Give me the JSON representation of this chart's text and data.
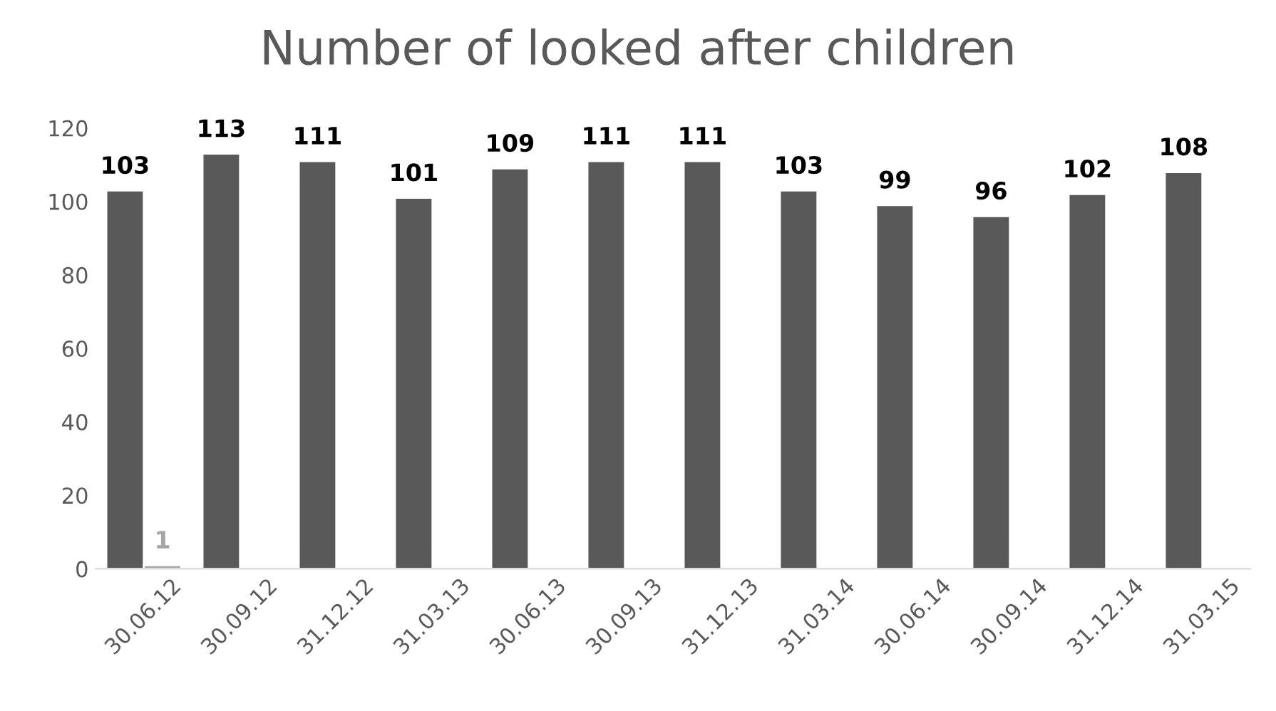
{
  "chart_data": {
    "type": "bar",
    "title": "Number of looked after children",
    "categories": [
      "30.06.12",
      "30.09.12",
      "31.12.12",
      "31.03.13",
      "30.06.13",
      "30.09.13",
      "31.12.13",
      "31.03.14",
      "30.06.14",
      "30.09.14",
      "31.12.14",
      "31.03.15"
    ],
    "series": [
      {
        "color": "#595959",
        "values": [
          103,
          113,
          111,
          101,
          109,
          111,
          111,
          103,
          99,
          96,
          102,
          108
        ]
      },
      {
        "color": "#a6a6a6",
        "values": [
          1,
          null,
          null,
          null,
          null,
          null,
          null,
          null,
          null,
          null,
          null,
          null
        ]
      }
    ],
    "ylim": [
      0,
      120
    ],
    "yticks": [
      0,
      20,
      40,
      60,
      80,
      100,
      120
    ],
    "data_labels": true,
    "grid": false,
    "legend": false
  }
}
